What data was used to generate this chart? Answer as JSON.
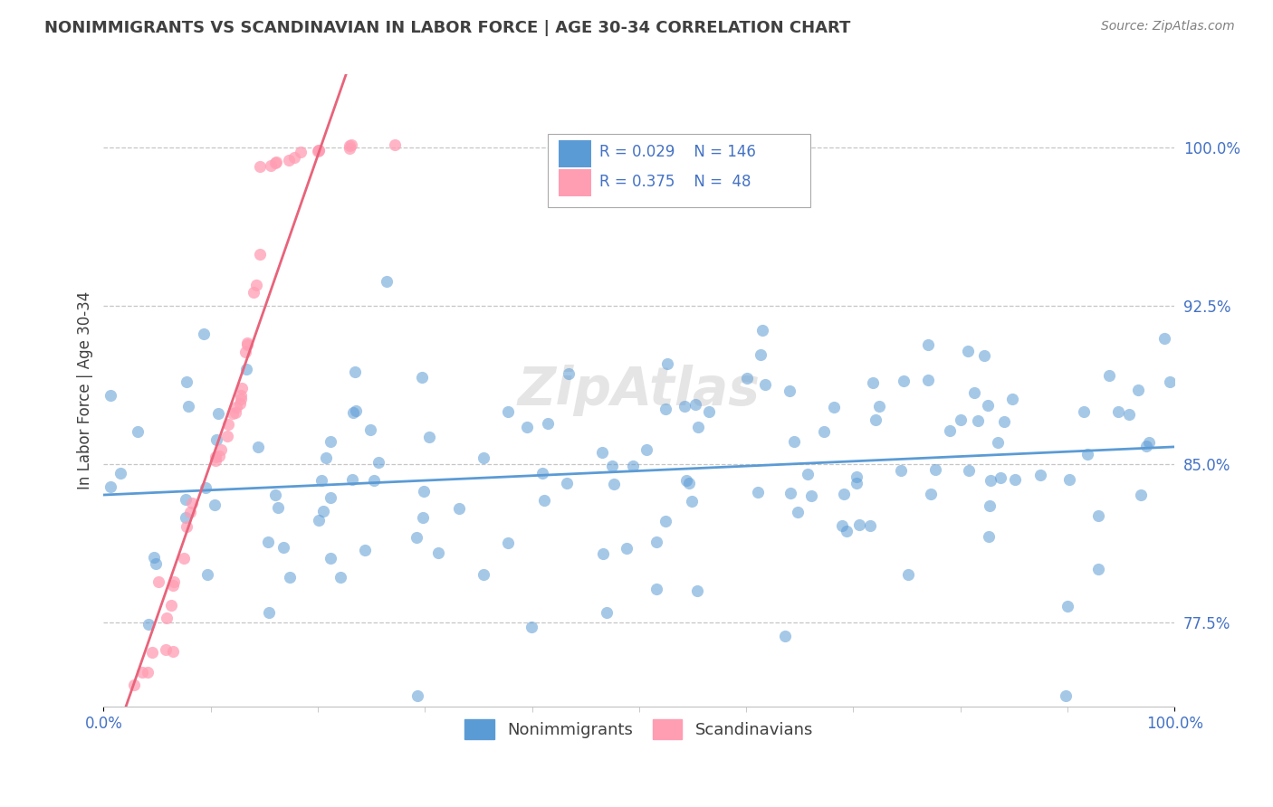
{
  "title": "NONIMMIGRANTS VS SCANDINAVIAN IN LABOR FORCE | AGE 30-34 CORRELATION CHART",
  "source": "Source: ZipAtlas.com",
  "ylabel": "In Labor Force | Age 30-34",
  "xlim": [
    0.0,
    1.0
  ],
  "ylim": [
    0.735,
    1.035
  ],
  "yticks": [
    0.775,
    0.85,
    0.925,
    1.0
  ],
  "yticklabels": [
    "77.5%",
    "85.0%",
    "92.5%",
    "100.0%"
  ],
  "xticklabels": [
    "0.0%",
    "100.0%"
  ],
  "legend_R1": "0.029",
  "legend_N1": "146",
  "legend_R2": "0.375",
  "legend_N2": "48",
  "blue_color": "#5B9BD5",
  "pink_color": "#FF9DB3",
  "regression_pink_color": "#E8637A",
  "title_color": "#404040",
  "axis_label_color": "#4472C4",
  "source_color": "#808080",
  "background_color": "#FFFFFF",
  "grid_color": "#C0C0C0"
}
